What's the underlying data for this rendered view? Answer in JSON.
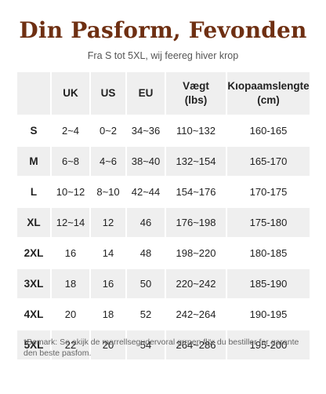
{
  "title": "Din Pasform, Fevonden",
  "subtitle": "Fra S tot 5XL, wij feereg hiver krop",
  "table": {
    "headers": [
      "",
      "UK",
      "US",
      "EU",
      "Vægt\n(lbs)",
      "Kıopaamslengte\n(cm)"
    ],
    "rows": [
      [
        "S",
        "2~4",
        "0~2",
        "34~36",
        "110~132",
        "160-165"
      ],
      [
        "M",
        "6~8",
        "4~6",
        "38~40",
        "132~154",
        "165-170"
      ],
      [
        "L",
        "10~12",
        "8~10",
        "42~44",
        "154~176",
        "170-175"
      ],
      [
        "XL",
        "12~14",
        "12",
        "46",
        "176~198",
        "175-180"
      ],
      [
        "2XL",
        "16",
        "14",
        "48",
        "198~220",
        "180-185"
      ],
      [
        "3XL",
        "18",
        "16",
        "50",
        "220~242",
        "185-190"
      ],
      [
        "4XL",
        "20",
        "18",
        "52",
        "242~264",
        "190-195"
      ],
      [
        "5XL",
        "22",
        "20",
        "54",
        "264~286",
        "195-200"
      ]
    ]
  },
  "note": "*Bemark: Se akijk de marrellsegudervoral grrpen flör du bestiller for garante den beste pasfom."
}
